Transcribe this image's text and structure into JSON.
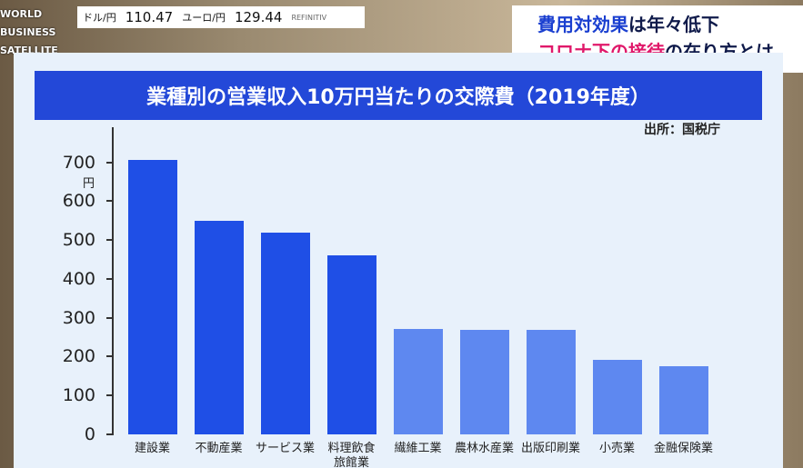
{
  "logo": [
    "WORLD",
    "BUSINESS",
    "SATELLITE"
  ],
  "ticker": [
    {
      "label": "ドル/円",
      "value": "110.47"
    },
    {
      "label": "ユーロ/円",
      "value": "129.44"
    }
  ],
  "ticker_source": "REFINITIV",
  "headline": [
    [
      "費用対効果",
      "は年々低下"
    ],
    [
      "コロナ下の接待",
      "の在り方とは"
    ]
  ],
  "chart_data": {
    "type": "bar",
    "title": "業種別の営業収入10万円当たりの交際費（2019年度）",
    "source": "出所：国税庁",
    "y_unit": "円",
    "categories": [
      "建設業",
      "不動産業",
      "サービス業",
      "料理飲食旅館業",
      "繊維工業",
      "農林水産業",
      "出版印刷業",
      "小売業",
      "金融保険業"
    ],
    "values": [
      705,
      550,
      520,
      461,
      272,
      269,
      269,
      192,
      176
    ],
    "colors": [
      "#1f4fe6",
      "#1f4fe6",
      "#1f4fe6",
      "#1f4fe6",
      "#5e88f0",
      "#5e88f0",
      "#5e88f0",
      "#5e88f0",
      "#5e88f0"
    ],
    "ylim": [
      0,
      790
    ],
    "yticks": [
      0,
      100,
      200,
      300,
      400,
      500,
      600,
      700
    ]
  }
}
